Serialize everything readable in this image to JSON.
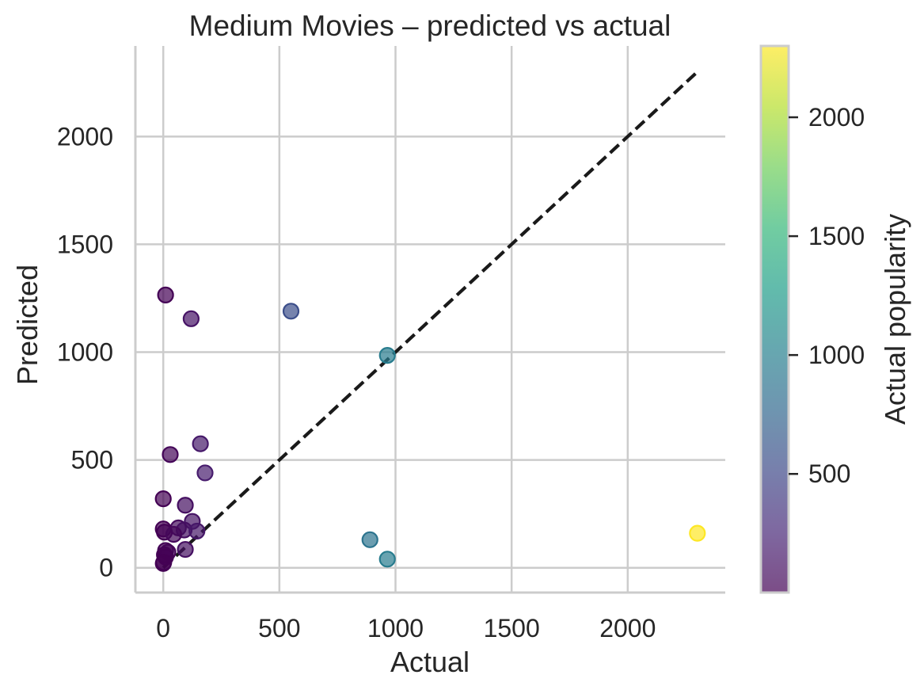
{
  "chart_data": {
    "type": "scatter",
    "title": "Medium Movies – predicted vs actual",
    "xlabel": "Actual",
    "ylabel": "Predicted",
    "xlim": [
      -120,
      2420
    ],
    "ylim": [
      -115,
      2420
    ],
    "xticks": [
      0,
      500,
      1000,
      1500,
      2000
    ],
    "yticks": [
      0,
      500,
      1000,
      1500,
      2000
    ],
    "grid": true,
    "reference_line": {
      "style": "dashed",
      "color": "#1a1a1a",
      "from": [
        0,
        0
      ],
      "to": [
        2300,
        2300
      ]
    },
    "colorbar": {
      "label": "Actual popularity",
      "colormap": "viridis",
      "range": [
        1,
        2300
      ],
      "ticks": [
        500,
        1000,
        1500,
        2000
      ]
    },
    "point_alpha": 0.7,
    "points": [
      {
        "x": 10,
        "y": 1265
      },
      {
        "x": 120,
        "y": 1155
      },
      {
        "x": 550,
        "y": 1190
      },
      {
        "x": 965,
        "y": 985
      },
      {
        "x": 160,
        "y": 575
      },
      {
        "x": 30,
        "y": 525
      },
      {
        "x": 180,
        "y": 440
      },
      {
        "x": 0,
        "y": 320
      },
      {
        "x": 95,
        "y": 290
      },
      {
        "x": 125,
        "y": 215
      },
      {
        "x": 65,
        "y": 185
      },
      {
        "x": 0,
        "y": 180
      },
      {
        "x": 90,
        "y": 175
      },
      {
        "x": 145,
        "y": 170
      },
      {
        "x": 5,
        "y": 165
      },
      {
        "x": 45,
        "y": 155
      },
      {
        "x": 95,
        "y": 85
      },
      {
        "x": 10,
        "y": 80
      },
      {
        "x": 20,
        "y": 72
      },
      {
        "x": 5,
        "y": 60
      },
      {
        "x": 10,
        "y": 50
      },
      {
        "x": 2,
        "y": 25
      },
      {
        "x": 0,
        "y": 20
      },
      {
        "x": 890,
        "y": 130
      },
      {
        "x": 965,
        "y": 40
      },
      {
        "x": 2300,
        "y": 160
      }
    ]
  }
}
